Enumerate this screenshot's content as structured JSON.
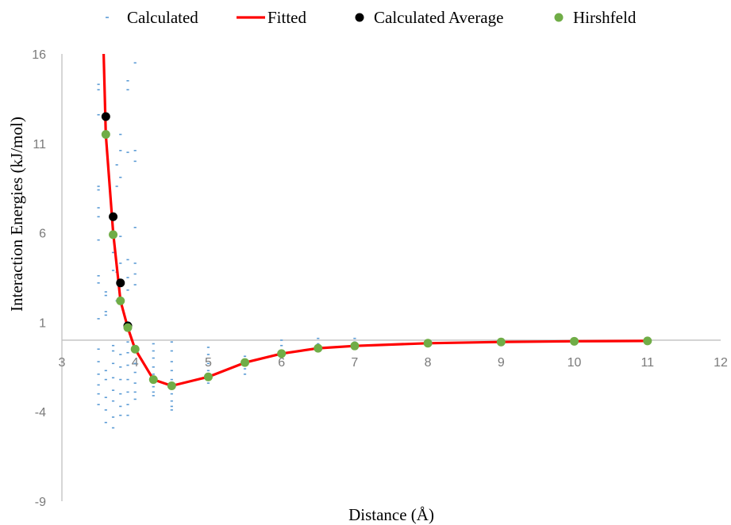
{
  "chart_data": {
    "type": "scatter",
    "title": "",
    "xlabel": "Distance (Å)",
    "ylabel": "Interaction Energies (kJ/mol)",
    "xlim": [
      3,
      12
    ],
    "ylim": [
      -9,
      16
    ],
    "x_ticks": [
      "3",
      "4",
      "5",
      "6",
      "7",
      "8",
      "9",
      "10",
      "11",
      "12"
    ],
    "y_ticks": [
      "16",
      "11",
      "6",
      "1",
      "-4",
      "-9"
    ],
    "x_tick_values": [
      3,
      4,
      5,
      6,
      7,
      8,
      9,
      10,
      11,
      12
    ],
    "y_tick_values": [
      16,
      11,
      6,
      1,
      -4,
      -9
    ],
    "x_axis_crosses_y_at": 0,
    "grid": false,
    "legend_position": "top",
    "colors": {
      "calculated": "#5b9bd5",
      "fitted": "#ff0000",
      "average": "#000000",
      "hirshfeld": "#70ad47",
      "axis": "#bfbfbf",
      "tick_text": "#7a7a7a"
    },
    "series": [
      {
        "name": "Calculated",
        "style": "dash-marker",
        "points": [
          [
            3.5,
            14.3
          ],
          [
            3.5,
            14.0
          ],
          [
            3.5,
            12.6
          ],
          [
            3.5,
            8.6
          ],
          [
            3.5,
            8.4
          ],
          [
            3.5,
            7.4
          ],
          [
            3.5,
            6.9
          ],
          [
            3.5,
            5.6
          ],
          [
            3.5,
            3.6
          ],
          [
            3.5,
            3.2
          ],
          [
            3.5,
            1.2
          ],
          [
            3.5,
            -0.5
          ],
          [
            3.5,
            -1.2
          ],
          [
            3.5,
            -1.9
          ],
          [
            3.5,
            -2.5
          ],
          [
            3.5,
            -3.0
          ],
          [
            3.5,
            -3.6
          ],
          [
            3.6,
            2.7
          ],
          [
            3.6,
            2.5
          ],
          [
            3.6,
            1.6
          ],
          [
            3.6,
            1.4
          ],
          [
            3.6,
            -1.7
          ],
          [
            3.6,
            -2.2
          ],
          [
            3.6,
            -3.2
          ],
          [
            3.6,
            -3.9
          ],
          [
            3.6,
            -4.6
          ],
          [
            3.7,
            4.9
          ],
          [
            3.7,
            3.9
          ],
          [
            3.7,
            -0.3
          ],
          [
            3.7,
            -0.6
          ],
          [
            3.7,
            -1.3
          ],
          [
            3.7,
            -2.1
          ],
          [
            3.7,
            -2.8
          ],
          [
            3.7,
            -3.4
          ],
          [
            3.7,
            -4.3
          ],
          [
            3.7,
            -4.9
          ],
          [
            3.75,
            9.8
          ],
          [
            3.75,
            8.6
          ],
          [
            3.75,
            3.8
          ],
          [
            3.75,
            2.2
          ],
          [
            3.8,
            11.5
          ],
          [
            3.8,
            10.6
          ],
          [
            3.8,
            9.1
          ],
          [
            3.8,
            5.8
          ],
          [
            3.8,
            4.3
          ],
          [
            3.8,
            -0.8
          ],
          [
            3.8,
            -1.5
          ],
          [
            3.8,
            -2.2
          ],
          [
            3.8,
            -3.0
          ],
          [
            3.8,
            -3.7
          ],
          [
            3.8,
            -4.2
          ],
          [
            3.9,
            14.5
          ],
          [
            3.9,
            14.0
          ],
          [
            3.9,
            10.5
          ],
          [
            3.9,
            4.5
          ],
          [
            3.9,
            3.5
          ],
          [
            3.9,
            2.8
          ],
          [
            3.9,
            -0.1
          ],
          [
            3.9,
            -0.7
          ],
          [
            3.9,
            -1.4
          ],
          [
            3.9,
            -2.2
          ],
          [
            3.9,
            -2.9
          ],
          [
            3.9,
            -3.6
          ],
          [
            3.9,
            -4.2
          ],
          [
            4.0,
            15.5
          ],
          [
            4.0,
            10.6
          ],
          [
            4.0,
            10.0
          ],
          [
            4.0,
            6.3
          ],
          [
            4.0,
            4.3
          ],
          [
            4.0,
            3.7
          ],
          [
            4.0,
            3.1
          ],
          [
            4.0,
            -1.3
          ],
          [
            4.0,
            -1.8
          ],
          [
            4.0,
            -2.4
          ],
          [
            4.0,
            -2.9
          ],
          [
            4.0,
            -3.3
          ],
          [
            4.25,
            -0.2
          ],
          [
            4.25,
            -0.6
          ],
          [
            4.25,
            -1.0
          ],
          [
            4.25,
            -1.5
          ],
          [
            4.25,
            -1.9
          ],
          [
            4.25,
            -2.3
          ],
          [
            4.25,
            -2.6
          ],
          [
            4.25,
            -2.9
          ],
          [
            4.25,
            -3.1
          ],
          [
            4.5,
            -0.1
          ],
          [
            4.5,
            -0.6
          ],
          [
            4.5,
            -1.2
          ],
          [
            4.5,
            -1.7
          ],
          [
            4.5,
            -2.2
          ],
          [
            4.5,
            -2.6
          ],
          [
            4.5,
            -3.0
          ],
          [
            4.5,
            -3.4
          ],
          [
            4.5,
            -3.7
          ],
          [
            4.5,
            -3.9
          ],
          [
            5.0,
            -0.4
          ],
          [
            5.0,
            -0.8
          ],
          [
            5.0,
            -1.3
          ],
          [
            5.0,
            -1.7
          ],
          [
            5.0,
            -2.1
          ],
          [
            5.0,
            -2.4
          ],
          [
            5.5,
            -0.9
          ],
          [
            5.5,
            -1.3
          ],
          [
            5.5,
            -1.6
          ],
          [
            5.5,
            -1.9
          ],
          [
            6.0,
            0.0
          ],
          [
            6.0,
            -0.3
          ],
          [
            6.0,
            -0.6
          ],
          [
            6.0,
            -0.9
          ],
          [
            6.5,
            0.1
          ],
          [
            6.5,
            -0.2
          ],
          [
            6.5,
            -0.4
          ],
          [
            7.0,
            0.1
          ],
          [
            7.0,
            -0.1
          ]
        ]
      },
      {
        "name": "Fitted",
        "style": "line",
        "x": [
          3.57,
          3.6,
          3.7,
          3.8,
          3.9,
          4.0,
          4.25,
          4.5,
          5.0,
          5.5,
          6.0,
          6.5,
          7.0,
          8.0,
          9.0,
          10.0,
          11.0
        ],
        "y": [
          16.0,
          11.5,
          6.0,
          2.2,
          0.7,
          -0.5,
          -2.2,
          -2.55,
          -2.05,
          -1.25,
          -0.75,
          -0.45,
          -0.32,
          -0.17,
          -0.1,
          -0.06,
          -0.04
        ]
      },
      {
        "name": "Calculated Average",
        "style": "marker",
        "x": [
          3.6,
          3.7,
          3.8,
          3.9
        ],
        "y": [
          12.5,
          6.9,
          3.2,
          0.8
        ]
      },
      {
        "name": "Hirshfeld",
        "style": "marker",
        "x": [
          3.6,
          3.7,
          3.8,
          3.9,
          4.0,
          4.25,
          4.5,
          5.0,
          5.5,
          6.0,
          6.5,
          7.0,
          8.0,
          9.0,
          10.0,
          11.0
        ],
        "y": [
          11.5,
          5.9,
          2.2,
          0.7,
          -0.5,
          -2.2,
          -2.55,
          -2.05,
          -1.25,
          -0.75,
          -0.45,
          -0.32,
          -0.17,
          -0.1,
          -0.06,
          -0.04
        ]
      }
    ]
  }
}
